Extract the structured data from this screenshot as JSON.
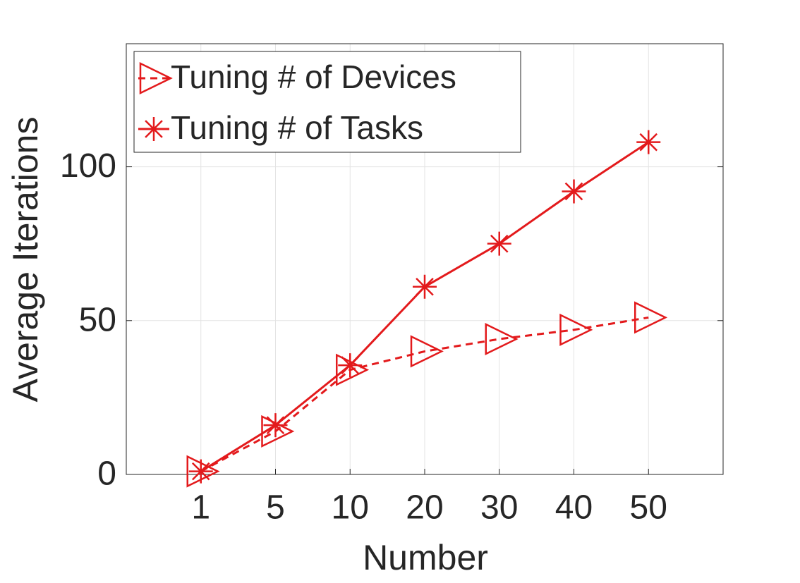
{
  "chart_data": {
    "type": "line",
    "x_label": "Number",
    "y_label": "Average Iterations",
    "categories": [
      "1",
      "5",
      "10",
      "20",
      "30",
      "40",
      "50"
    ],
    "series": [
      {
        "name": "Tuning # of Devices",
        "color": "#e31a1c",
        "marker": "triangle-right",
        "dash": true,
        "values": [
          1,
          14,
          34,
          40,
          44,
          47,
          51
        ]
      },
      {
        "name": "Tuning # of Tasks",
        "color": "#e31a1c",
        "marker": "asterisk",
        "dash": false,
        "values": [
          1,
          16,
          35.5,
          61,
          75,
          92,
          108
        ]
      }
    ],
    "ylim": [
      0,
      140
    ],
    "yticks": [
      0,
      50,
      100
    ],
    "grid": true,
    "legend": "upper-left"
  }
}
